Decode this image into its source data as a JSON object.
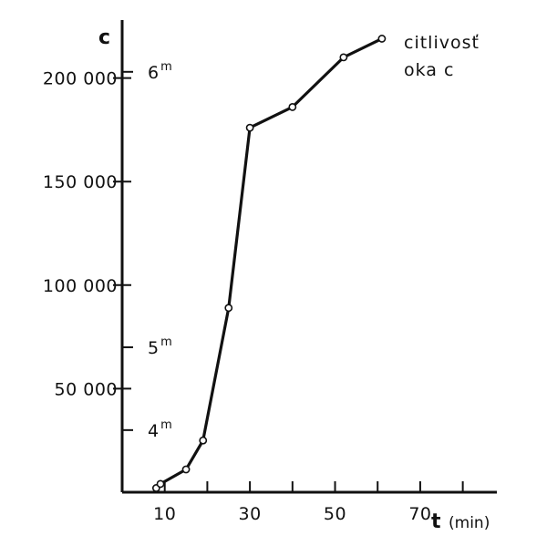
{
  "chart_data": {
    "type": "line",
    "y_axis_label": "c",
    "x_axis_label": "t",
    "x_unit": "(min)",
    "x_ticks": [
      10,
      20,
      30,
      40,
      50,
      60,
      70,
      80
    ],
    "x_tick_labels": [
      {
        "value": 10,
        "text": "10"
      },
      {
        "value": 30,
        "text": "30"
      },
      {
        "value": 50,
        "text": "50"
      },
      {
        "value": 70,
        "text": "70"
      }
    ],
    "y_ticks": [
      {
        "value": 200000,
        "text": "200 000"
      },
      {
        "value": 150000,
        "text": "150 000"
      },
      {
        "value": 100000,
        "text": "100 000"
      },
      {
        "value": 50000,
        "text": "50 000"
      }
    ],
    "xlim": [
      0,
      88
    ],
    "ylim": [
      0,
      228000
    ],
    "series": [
      {
        "name": "citlivosť oka c",
        "x": [
          8,
          9,
          15,
          19,
          25,
          30,
          40,
          52,
          61
        ],
        "y": [
          2000,
          4000,
          11000,
          25000,
          89000,
          176000,
          186000,
          210000,
          219000
        ]
      }
    ],
    "legend": {
      "line1": "citlivosť",
      "line2": "oka c",
      "placement": "top-right"
    },
    "magnitude_marks": [
      {
        "value": 203000,
        "base": "6",
        "sup": "m"
      },
      {
        "value": 70000,
        "base": "5",
        "sup": "m"
      },
      {
        "value": 30000,
        "base": "4",
        "sup": "m"
      }
    ],
    "grid": false
  }
}
